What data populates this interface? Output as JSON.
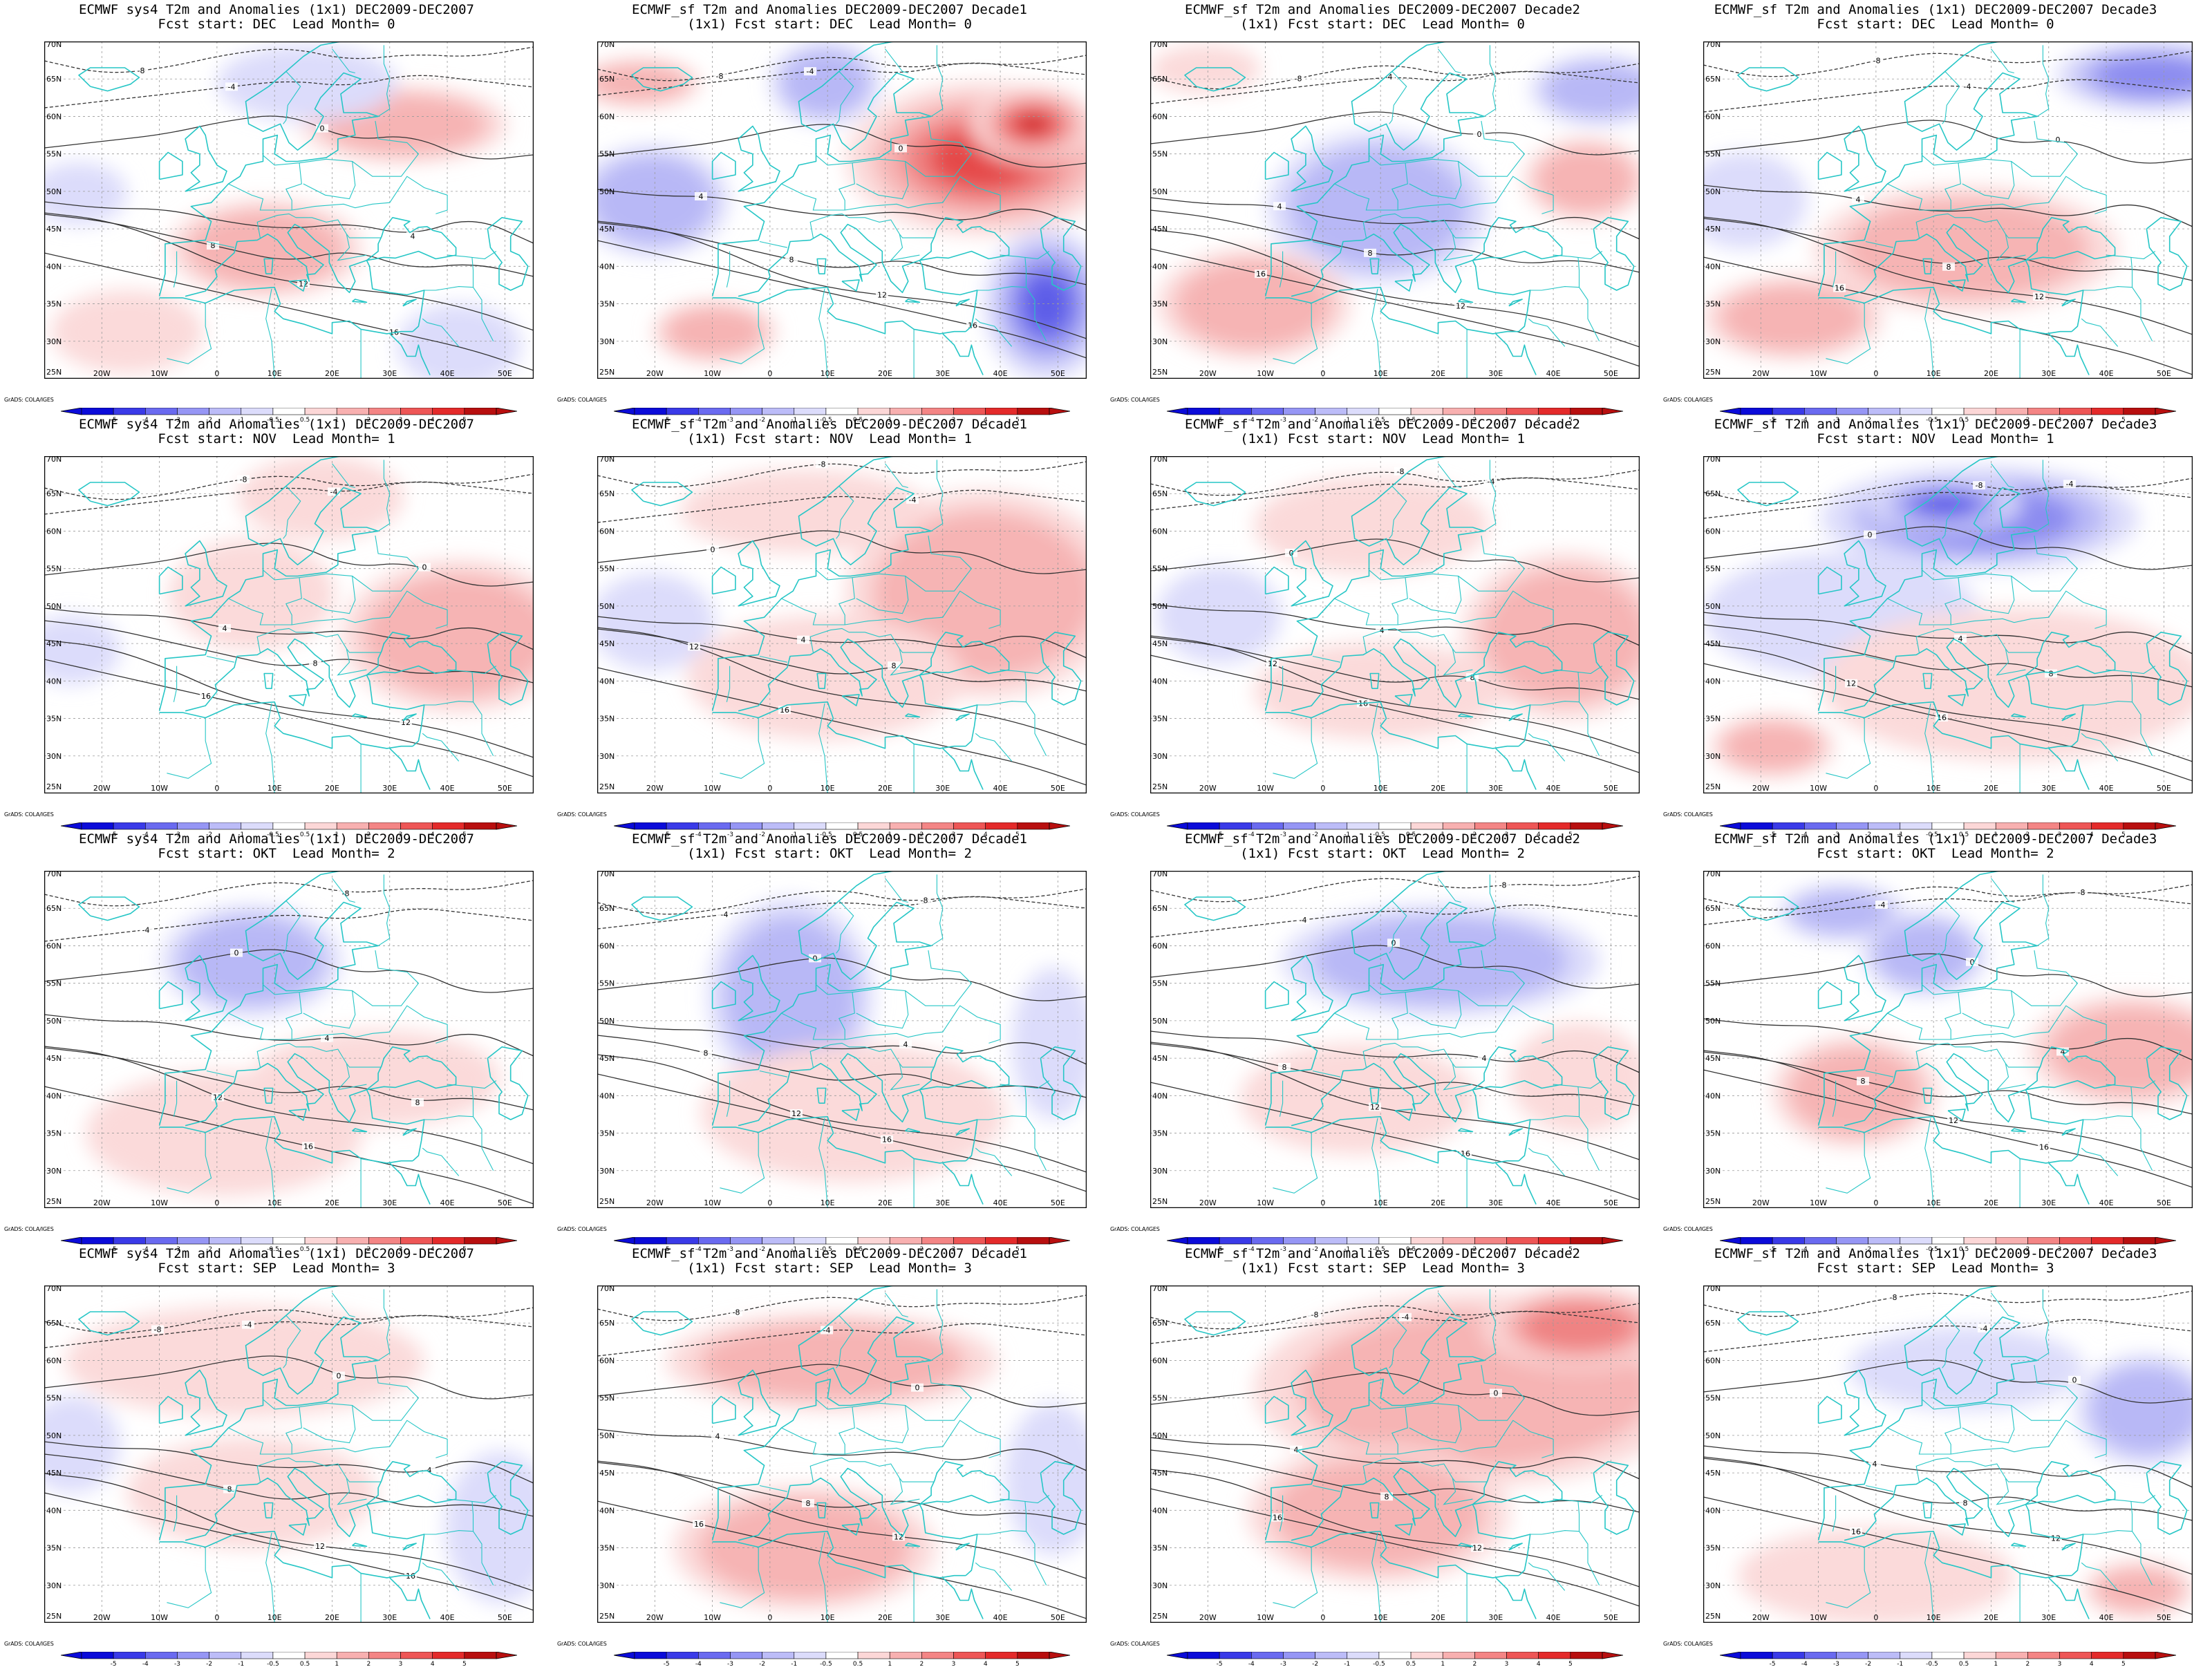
{
  "figure": {
    "credit": "GrADS: COLA/IGES",
    "map_extent": {
      "lon": [
        -30,
        55
      ],
      "lat": [
        25,
        70
      ]
    },
    "lon_ticks": [
      "20W",
      "10W",
      "0",
      "10E",
      "20E",
      "30E",
      "40E",
      "50E"
    ],
    "lat_ticks": [
      "70N",
      "65N",
      "60N",
      "55N",
      "50N",
      "45N",
      "40N",
      "35N",
      "30N",
      "25N"
    ],
    "colorbar_labels": [
      "-5",
      "-4",
      "-3",
      "-2",
      "-1",
      "-0.5",
      "0.5",
      "1",
      "2",
      "3",
      "4",
      "5"
    ],
    "colorbar_colors": [
      "#0b0bd9",
      "#3a3ae8",
      "#6a6af0",
      "#9696f5",
      "#bcbcf8",
      "#dcdcfb",
      "#ffffff",
      "#fcd7d7",
      "#f8b0b0",
      "#f48585",
      "#ee5656",
      "#e42a2a",
      "#b80f0f"
    ],
    "coastline_color": "#26c6c6",
    "contour_labels": [
      "-8",
      "-4",
      "0",
      "4",
      "8",
      "12",
      "16"
    ]
  },
  "panels": [
    {
      "title": "ECMWF sys4 T2m and Anomalies (1x1) DEC2009-DEC2007",
      "subtitle": "Fcst start: DEC  Lead Month= 0"
    },
    {
      "title": "ECMWF_sf T2m and Anomalies DEC2009-DEC2007 Decade1",
      "subtitle": "(1x1) Fcst start: DEC  Lead Month= 0"
    },
    {
      "title": "ECMWF_sf T2m and Anomalies DEC2009-DEC2007 Decade2",
      "subtitle": "(1x1) Fcst start: DEC  Lead Month= 0"
    },
    {
      "title": "ECMWF_sf T2m and Anomalies (1x1) DEC2009-DEC2007 Decade3",
      "subtitle": "Fcst start: DEC  Lead Month= 0"
    },
    {
      "title": "ECMWF sys4 T2m and Anomalies (1x1) DEC2009-DEC2007",
      "subtitle": "Fcst start: NOV  Lead Month= 1"
    },
    {
      "title": "ECMWF_sf T2m and Anomalies DEC2009-DEC2007 Decade1",
      "subtitle": "(1x1) Fcst start: NOV  Lead Month= 1"
    },
    {
      "title": "ECMWF_sf T2m and Anomalies DEC2009-DEC2007 Decade2",
      "subtitle": "(1x1) Fcst start: NOV  Lead Month= 1"
    },
    {
      "title": "ECMWF_sf T2m and Anomalies (1x1) DEC2009-DEC2007 Decade3",
      "subtitle": "Fcst start: NOV  Lead Month= 1"
    },
    {
      "title": "ECMWF sys4 T2m and Anomalies (1x1) DEC2009-DEC2007",
      "subtitle": "Fcst start: OKT  Lead Month= 2"
    },
    {
      "title": "ECMWF_sf T2m and Anomalies DEC2009-DEC2007 Decade1",
      "subtitle": "(1x1) Fcst start: OKT  Lead Month= 2"
    },
    {
      "title": "ECMWF_sf T2m and Anomalies DEC2009-DEC2007 Decade2",
      "subtitle": "(1x1) Fcst start: OKT  Lead Month= 2"
    },
    {
      "title": "ECMWF_sf T2m and Anomalies (1x1) DEC2009-DEC2007 Decade3",
      "subtitle": "Fcst start: OKT  Lead Month= 2"
    },
    {
      "title": "ECMWF sys4 T2m and Anomalies (1x1) DEC2009-DEC2007",
      "subtitle": "Fcst start: SEP  Lead Month= 3"
    },
    {
      "title": "ECMWF_sf T2m and Anomalies DEC2009-DEC2007 Decade1",
      "subtitle": "(1x1) Fcst start: SEP  Lead Month= 3"
    },
    {
      "title": "ECMWF_sf T2m and Anomalies DEC2009-DEC2007 Decade2",
      "subtitle": "(1x1) Fcst start: SEP  Lead Month= 3"
    },
    {
      "title": "ECMWF_sf T2m and Anomalies (1x1) DEC2009-DEC2007 Decade3",
      "subtitle": "Fcst start: SEP  Lead Month= 3"
    }
  ]
}
